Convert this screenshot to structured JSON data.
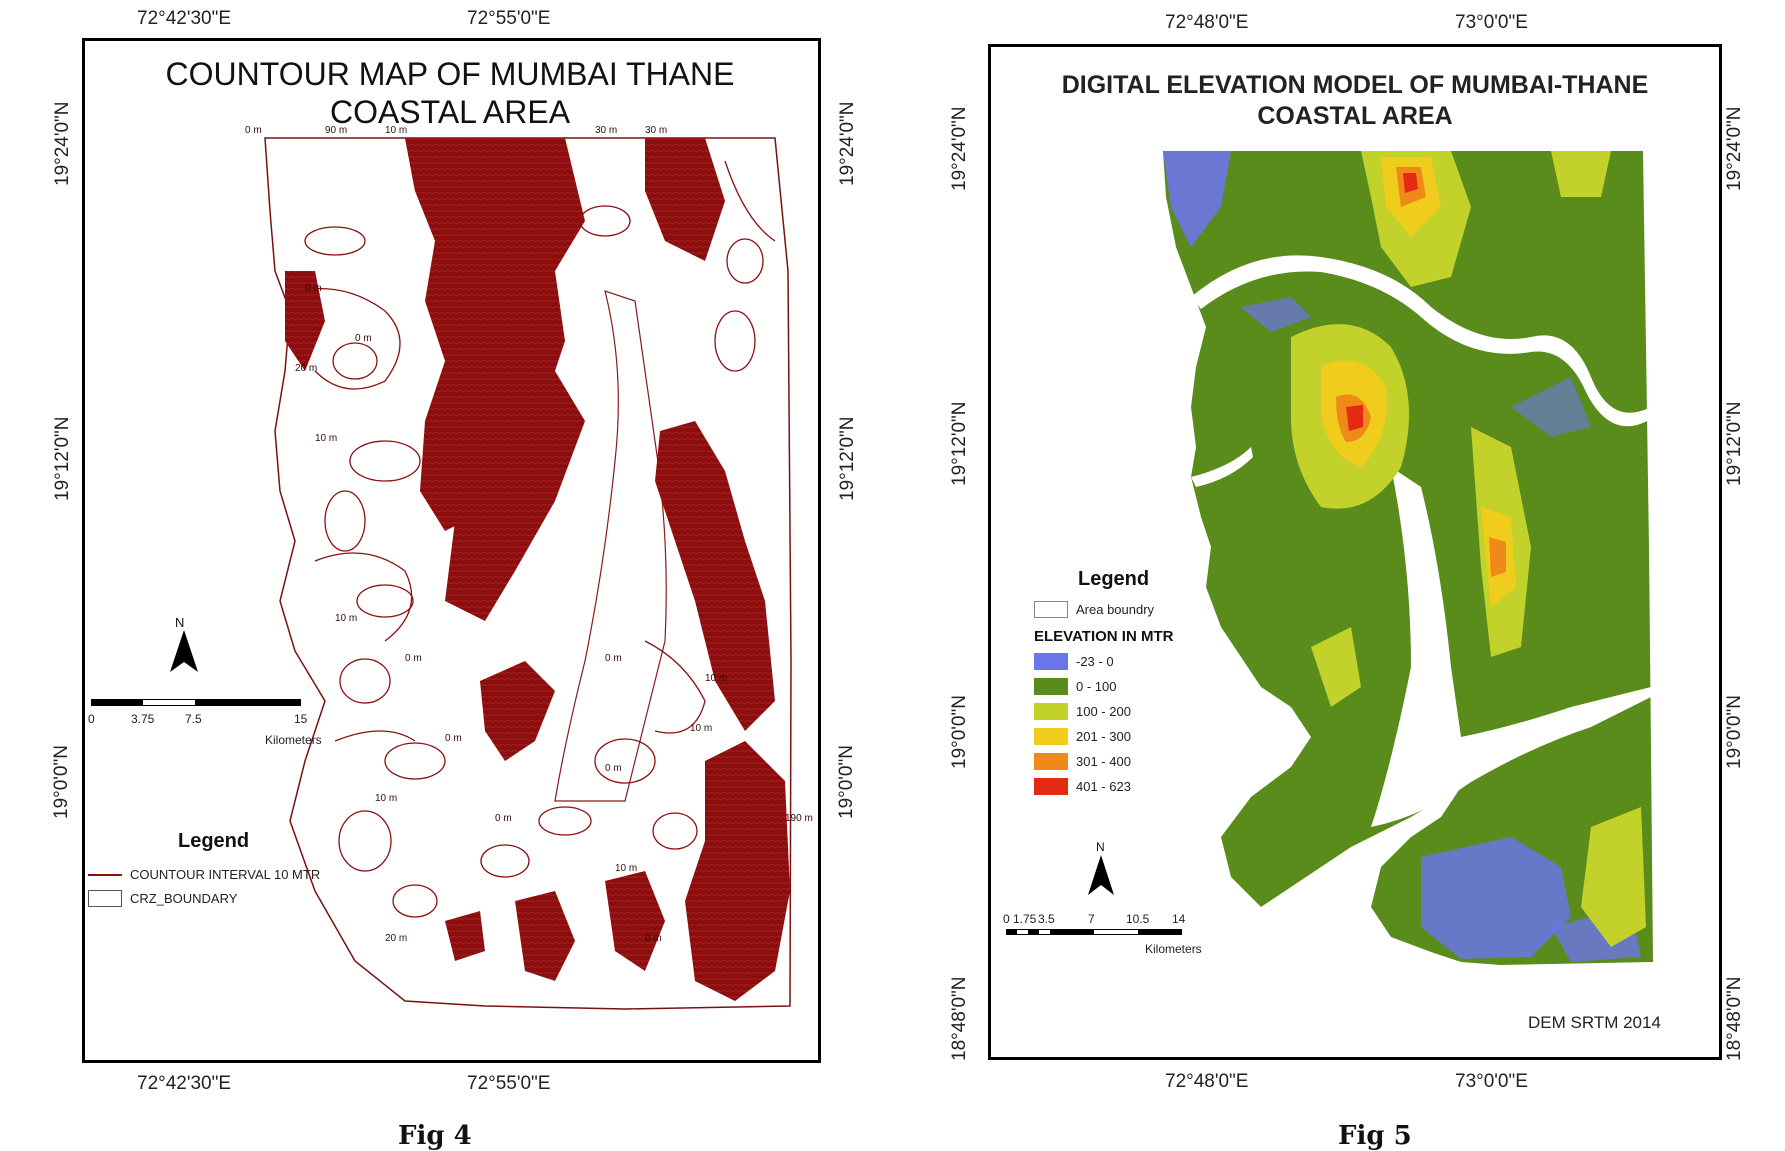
{
  "fig4": {
    "title_line1": "COUNTOUR MAP OF MUMBAI THANE",
    "title_line2": "COASTAL AREA",
    "lon_ticks": [
      "72°42'30\"E",
      "72°55'0\"E"
    ],
    "lat_ticks": [
      "19°24'0\"N",
      "19°12'0\"N",
      "19°0'0\"N"
    ],
    "north_label": "N",
    "scale_labels": [
      "0",
      "3.75",
      "7.5",
      "15"
    ],
    "scale_unit": "Kilometers",
    "legend": {
      "title": "Legend",
      "items": [
        {
          "label": "COUNTOUR INTERVAL 10 MTR",
          "color": "#8b1010"
        },
        {
          "label": "CRZ_BOUNDARY",
          "color": "#555555"
        }
      ]
    },
    "contour_labels": [
      "0 m",
      "90 m",
      "10 m",
      "0 m",
      "30 m",
      "20 m",
      "10 m",
      "0 m",
      "10 m",
      "0 m",
      "30 m",
      "0 m",
      "10 m",
      "0 m",
      "0 m",
      "20 m",
      "10 m",
      "0 m",
      "10 m",
      "0 m",
      "190 m",
      "10 m"
    ],
    "caption": "Fig 4"
  },
  "fig5": {
    "title_line1": "DIGITAL ELEVATION MODEL OF MUMBAI-THANE",
    "title_line2": "COASTAL AREA",
    "lon_ticks": [
      "72°48'0\"E",
      "73°0'0\"E"
    ],
    "lat_ticks": [
      "19°24'0\"N",
      "19°12'0\"N",
      "19°0'0\"N",
      "18°48'0\"N"
    ],
    "north_label": "N",
    "scale_labels": [
      "0",
      "1.75",
      "3.5",
      "7",
      "10.5",
      "14"
    ],
    "scale_unit": "Kilometers",
    "legend": {
      "title": "Legend",
      "boundary_label": "Area boundry",
      "subtitle": "ELEVATION IN MTR",
      "classes": [
        {
          "label": "-23 - 0",
          "color": "#6b74e8"
        },
        {
          "label": "0 - 100",
          "color": "#5a8c1c"
        },
        {
          "label": "100 - 200",
          "color": "#c3d22a"
        },
        {
          "label": "201 - 300",
          "color": "#f0cc1c"
        },
        {
          "label": "301 - 400",
          "color": "#ef8a1a"
        },
        {
          "label": "401 - 623",
          "color": "#e42a12"
        }
      ]
    },
    "source": "DEM SRTM 2014",
    "caption": "Fig 5"
  }
}
